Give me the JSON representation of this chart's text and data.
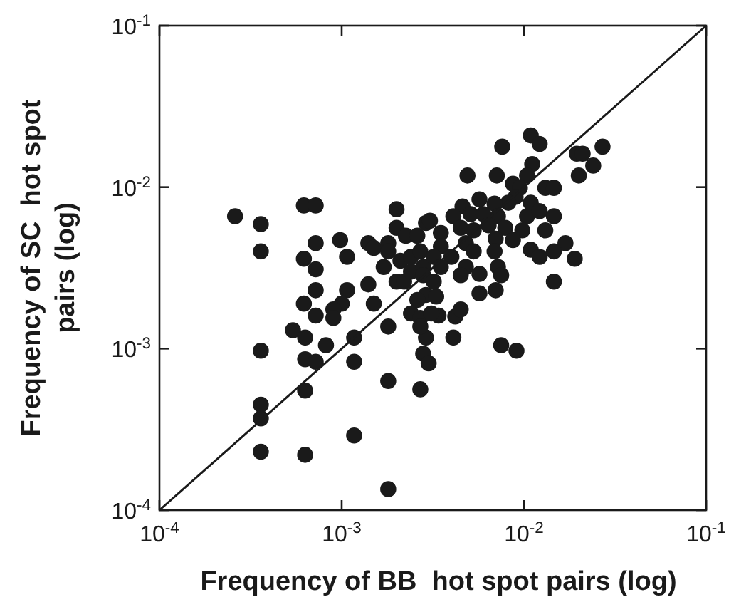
{
  "chart_data": {
    "type": "scatter",
    "xlabel": "Frequency of BB  hot spot pairs (log)",
    "ylabel": "Frequency of SC  hot spot pairs (log)",
    "log": "xy",
    "xlim": [
      0.0001,
      0.1
    ],
    "ylim": [
      0.0001,
      0.1
    ],
    "xticks": [
      {
        "value": 0.0001,
        "label": "10$^{-4}$"
      },
      {
        "value": 0.001,
        "label": "10$^{-3}$"
      },
      {
        "value": 0.01,
        "label": "10$^{-2}$"
      },
      {
        "value": 0.1,
        "label": "10$^{-1}$"
      }
    ],
    "yticks": [
      {
        "value": 0.0001,
        "label": "10$^{-4}$"
      },
      {
        "value": 0.001,
        "label": "10$^{-3}$"
      },
      {
        "value": 0.01,
        "label": "10$^{-2}$"
      },
      {
        "value": 0.1,
        "label": "10$^{-1}$"
      }
    ],
    "series": [
      {
        "color": "#1a1a1a",
        "marker": "circle",
        "x": [
          0.00026,
          0.00036,
          0.00036,
          0.00062,
          0.00072,
          0.00072,
          0.00098,
          0.00107,
          0.00062,
          0.00072,
          0.00072,
          0.00062,
          0.00072,
          0.00107,
          0.001,
          0.0009,
          0.0009,
          0.0014,
          0.0015,
          0.0014,
          0.0015,
          0.0018,
          0.0018,
          0.0017,
          0.002,
          0.002,
          0.00225,
          0.0026,
          0.0029,
          0.0021,
          0.0024,
          0.0027,
          0.002,
          0.0022,
          0.0024,
          0.0028,
          0.0024,
          0.0027,
          0.0029,
          0.00054,
          0.00063,
          0.00082,
          0.00117,
          0.00036,
          0.00063,
          0.00072,
          0.00117,
          0.0018,
          0.0018,
          0.0027,
          0.0028,
          0.003,
          0.0029,
          0.00063,
          0.00036,
          0.00036,
          0.00117,
          0.00036,
          0.00063,
          0.0018,
          0.0034,
          0.0042,
          0.0027,
          0.0041,
          0.0075,
          0.0091,
          0.0109,
          0.0122,
          0.0076,
          0.027,
          0.0195,
          0.021,
          0.024,
          0.0111,
          0.0049,
          0.0071,
          0.0104,
          0.02,
          0.0087,
          0.0095,
          0.0131,
          0.0146,
          0.009,
          0.0109,
          0.0082,
          0.0057,
          0.0069,
          0.0046,
          0.0041,
          0.00305,
          0.0051,
          0.006,
          0.0072,
          0.0104,
          0.0122,
          0.0146,
          0.0035,
          0.0045,
          0.0053,
          0.0064,
          0.0079,
          0.0098,
          0.0131,
          0.0087,
          0.007,
          0.0048,
          0.0035,
          0.0032,
          0.004,
          0.0053,
          0.0069,
          0.0169,
          0.0109,
          0.0122,
          0.0146,
          0.019,
          0.0035,
          0.0048,
          0.0072,
          0.0057,
          0.0028,
          0.0032,
          0.0045,
          0.0075,
          0.0146,
          0.0057,
          0.007,
          0.0033,
          0.0026,
          0.0045,
          0.0031
        ],
        "values": [
          0.0066,
          0.0059,
          0.004,
          0.0077,
          0.0077,
          0.0045,
          0.0047,
          0.0037,
          0.0036,
          0.0031,
          0.0023,
          0.0019,
          0.0016,
          0.0023,
          0.0019,
          0.00175,
          0.00155,
          0.0025,
          0.0019,
          0.0045,
          0.0042,
          0.0045,
          0.004,
          0.0032,
          0.0073,
          0.0056,
          0.005,
          0.005,
          0.006,
          0.0035,
          0.0037,
          0.004,
          0.0026,
          0.0026,
          0.003,
          0.0032,
          0.00165,
          0.00155,
          0.00215,
          0.0013,
          0.00117,
          0.00105,
          0.00117,
          0.00097,
          0.00086,
          0.00083,
          0.00083,
          0.00137,
          0.00063,
          0.00056,
          0.00093,
          0.00081,
          0.00117,
          0.00055,
          0.00045,
          0.00037,
          0.00029,
          0.00023,
          0.00022,
          0.000135,
          0.0016,
          0.00158,
          0.00137,
          0.00117,
          0.00105,
          0.00097,
          0.0209,
          0.0185,
          0.0178,
          0.0178,
          0.0161,
          0.0161,
          0.0136,
          0.0139,
          0.0118,
          0.0118,
          0.0118,
          0.0118,
          0.0105,
          0.0099,
          0.0099,
          0.0099,
          0.0087,
          0.008,
          0.008,
          0.0084,
          0.0079,
          0.0076,
          0.0066,
          0.0062,
          0.0068,
          0.0068,
          0.0066,
          0.0066,
          0.0071,
          0.0066,
          0.0052,
          0.0056,
          0.0054,
          0.0058,
          0.0056,
          0.0054,
          0.0054,
          0.0047,
          0.0048,
          0.0045,
          0.0043,
          0.0037,
          0.0037,
          0.004,
          0.004,
          0.0045,
          0.0041,
          0.0037,
          0.004,
          0.0036,
          0.0032,
          0.0032,
          0.0032,
          0.0029,
          0.00285,
          0.0026,
          0.00285,
          0.00285,
          0.0026,
          0.0022,
          0.0023,
          0.0021,
          0.002,
          0.00175,
          0.00165
        ]
      },
      {
        "type": "line",
        "color": "#1a1a1a",
        "marker": "none",
        "x": [
          0.0001,
          0.1
        ],
        "values": [
          0.0001,
          0.1
        ]
      }
    ]
  }
}
